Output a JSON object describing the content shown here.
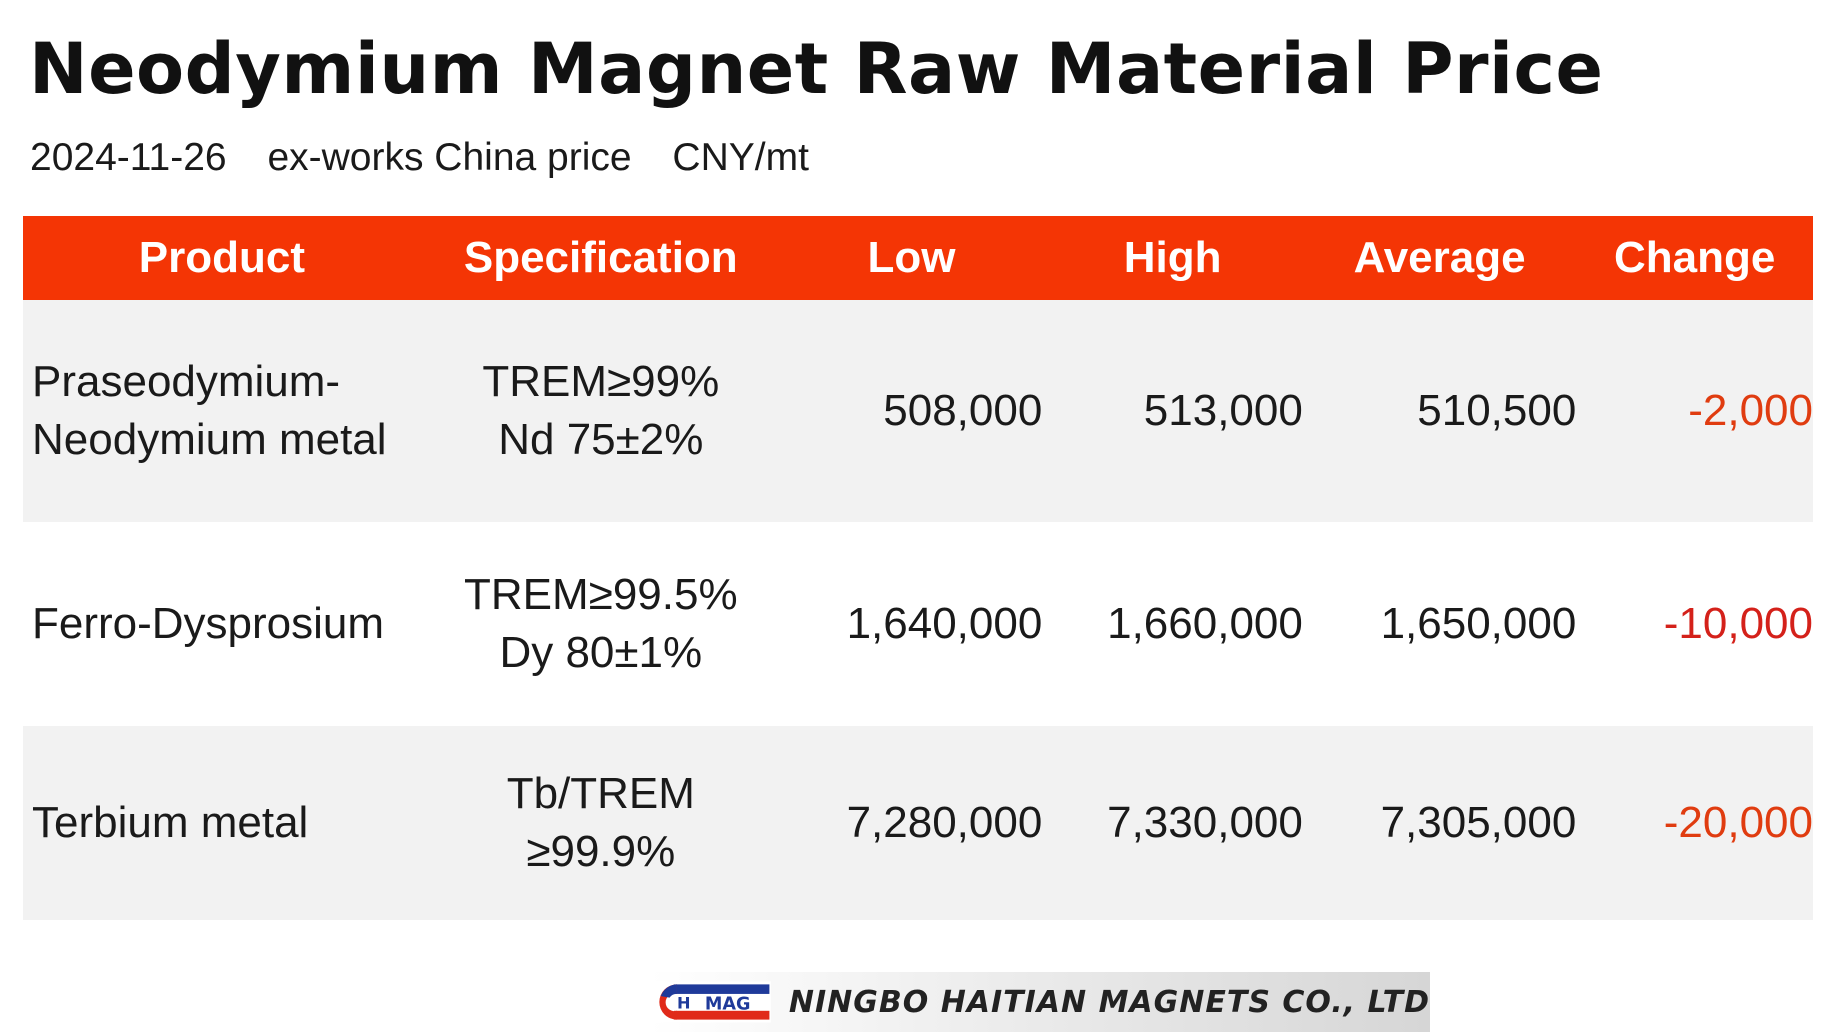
{
  "title": "Neodymium Magnet Raw Material Price",
  "subtitle": {
    "date": "2024-11-26",
    "basis": "ex-works China price",
    "unit": "CNY/mt"
  },
  "table": {
    "headers": {
      "product": "Product",
      "specification": "Specification",
      "low": "Low",
      "high": "High",
      "average": "Average",
      "change": "Change"
    },
    "rows": [
      {
        "product_line1": "Praseodymium-",
        "product_line2": "Neodymium metal",
        "spec_line1": "TREM≥99%",
        "spec_line2": "Nd 75±2%",
        "low": "508,000",
        "high": "513,000",
        "average": "510,500",
        "change": "-2,000"
      },
      {
        "product_line1": "Ferro-Dysprosium",
        "spec_line1": "TREM≥99.5%",
        "spec_line2": "Dy 80±1%",
        "low": "1,640,000",
        "high": "1,660,000",
        "average": "1,650,000",
        "change": "-10,000"
      },
      {
        "product_line1": "Terbium metal",
        "spec_line1": "Tb/TREM",
        "spec_line2": "≥99.9%",
        "low": "7,280,000",
        "high": "7,330,000",
        "average": "7,305,000",
        "change": "-20,000"
      }
    ]
  },
  "logo": {
    "mark_letters_1": "H",
    "mark_letters_2": "MAG",
    "company": "NINGBO HAITIAN MAGNETS CO., LTD"
  },
  "colors": {
    "header_bg": "#f43505",
    "negative": "#e03c10",
    "row_shade": "#f2f2f2"
  }
}
